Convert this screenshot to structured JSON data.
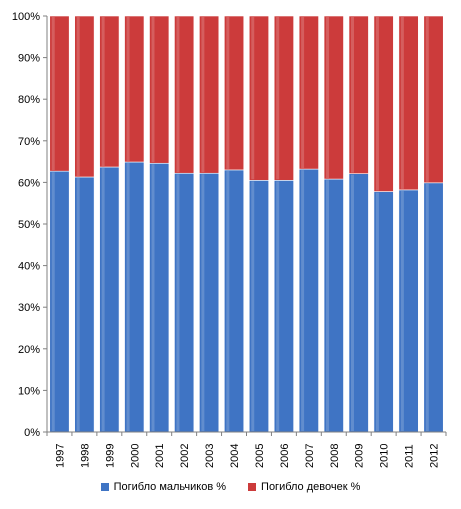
{
  "chart_data": {
    "type": "bar",
    "stacked": "percent",
    "categories": [
      "1997",
      "1998",
      "1999",
      "2000",
      "2001",
      "2002",
      "2003",
      "2004",
      "2005",
      "2006",
      "2007",
      "2008",
      "2009",
      "2010",
      "2011",
      "2012"
    ],
    "series": [
      {
        "name": "Погибло мальчиков %",
        "color": "#3f74c4",
        "values": [
          62.7,
          61.3,
          63.7,
          64.9,
          64.6,
          62.2,
          62.2,
          63.0,
          60.5,
          60.5,
          63.2,
          60.8,
          62.1,
          57.8,
          58.2,
          59.9
        ]
      },
      {
        "name": "Погибло девочек %",
        "color": "#cc3b3b",
        "values": [
          37.3,
          38.7,
          36.3,
          35.1,
          35.4,
          37.8,
          37.8,
          37.0,
          39.5,
          39.5,
          36.8,
          39.2,
          37.9,
          42.2,
          41.8,
          40.1
        ]
      }
    ],
    "yticks": [
      "0%",
      "10%",
      "20%",
      "30%",
      "40%",
      "50%",
      "60%",
      "70%",
      "80%",
      "90%",
      "100%"
    ],
    "ylim": [
      0,
      100
    ],
    "grid": false,
    "legend_position": "bottom",
    "title": "",
    "xlabel": "",
    "ylabel": ""
  }
}
